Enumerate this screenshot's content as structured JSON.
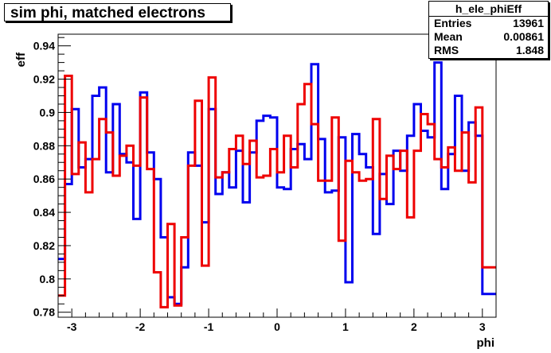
{
  "title": "sim phi, matched electrons",
  "stats": {
    "name": "h_ele_phiEff",
    "rows": [
      {
        "label": "Entries",
        "value": "13961"
      },
      {
        "label": "Mean",
        "value": "0.00861"
      },
      {
        "label": "RMS",
        "value": "1.848"
      }
    ]
  },
  "colors": {
    "series1": "#0000ee",
    "series2": "#ee0000",
    "frame": "#000000"
  },
  "chart_data": {
    "type": "line",
    "style": "step",
    "xlabel": "phi",
    "ylabel": "eff",
    "xlim": [
      -3.2,
      3.2
    ],
    "ylim": [
      0.777,
      0.947
    ],
    "x_ticks": [
      -3,
      -2,
      -1,
      0,
      1,
      2,
      3
    ],
    "x_tick_labels": [
      "-3",
      "-2",
      "-1",
      "0",
      "1",
      "2",
      "3"
    ],
    "y_ticks": [
      0.78,
      0.8,
      0.82,
      0.84,
      0.86,
      0.88,
      0.9,
      0.92,
      0.94
    ],
    "y_tick_labels": [
      "0.78",
      "0.8",
      "0.82",
      "0.84",
      "0.86",
      "0.88",
      "0.9",
      "0.92",
      "0.94"
    ],
    "bin_edges": [
      -3.2,
      -3.1,
      -3.0,
      -2.9,
      -2.8,
      -2.7,
      -2.6,
      -2.5,
      -2.4,
      -2.3,
      -2.2,
      -2.1,
      -2.0,
      -1.9,
      -1.8,
      -1.7,
      -1.6,
      -1.5,
      -1.4,
      -1.3,
      -1.2,
      -1.1,
      -1.0,
      -0.9,
      -0.8,
      -0.7,
      -0.6,
      -0.5,
      -0.4,
      -0.3,
      -0.2,
      -0.1,
      0.0,
      0.1,
      0.2,
      0.3,
      0.4,
      0.5,
      0.6,
      0.7,
      0.8,
      0.9,
      1.0,
      1.1,
      1.2,
      1.3,
      1.4,
      1.5,
      1.6,
      1.7,
      1.8,
      1.9,
      2.0,
      2.1,
      2.2,
      2.3,
      2.4,
      2.5,
      2.6,
      2.7,
      2.8,
      2.9,
      3.0,
      3.1,
      3.2
    ],
    "series": [
      {
        "values": [
          0.812,
          0.857,
          0.902,
          0.867,
          0.872,
          0.91,
          0.915,
          0.864,
          0.905,
          0.875,
          0.87,
          0.836,
          0.912,
          0.876,
          0.86,
          0.825,
          0.789,
          0.785,
          0.807,
          0.876,
          0.868,
          0.834,
          0.902,
          0.851,
          0.864,
          0.855,
          0.877,
          0.846,
          0.876,
          0.895,
          0.898,
          0.897,
          0.855,
          0.854,
          0.878,
          0.881,
          0.872,
          0.929,
          0.884,
          0.852,
          0.853,
          0.885,
          0.798,
          0.887,
          0.875,
          0.867,
          0.827,
          0.863,
          0.845,
          0.877,
          0.865,
          0.886,
          0.905,
          0.889,
          0.885,
          0.93,
          0.854,
          0.875,
          0.91,
          0.865,
          0.894,
          0.886,
          0.791,
          0.791
        ]
      },
      {
        "values": [
          0.79,
          0.922,
          0.863,
          0.882,
          0.852,
          0.872,
          0.896,
          0.888,
          0.862,
          0.874,
          0.88,
          0.868,
          0.909,
          0.866,
          0.804,
          0.783,
          0.833,
          0.784,
          0.825,
          0.868,
          0.907,
          0.808,
          0.921,
          0.861,
          0.864,
          0.878,
          0.886,
          0.869,
          0.883,
          0.861,
          0.862,
          0.878,
          0.864,
          0.886,
          0.867,
          0.905,
          0.917,
          0.893,
          0.859,
          0.859,
          0.897,
          0.823,
          0.871,
          0.864,
          0.859,
          0.86,
          0.896,
          0.848,
          0.874,
          0.866,
          0.877,
          0.837,
          0.877,
          0.899,
          0.893,
          0.872,
          0.867,
          0.879,
          0.865,
          0.888,
          0.858,
          0.903,
          0.807,
          0.807
        ]
      }
    ]
  }
}
